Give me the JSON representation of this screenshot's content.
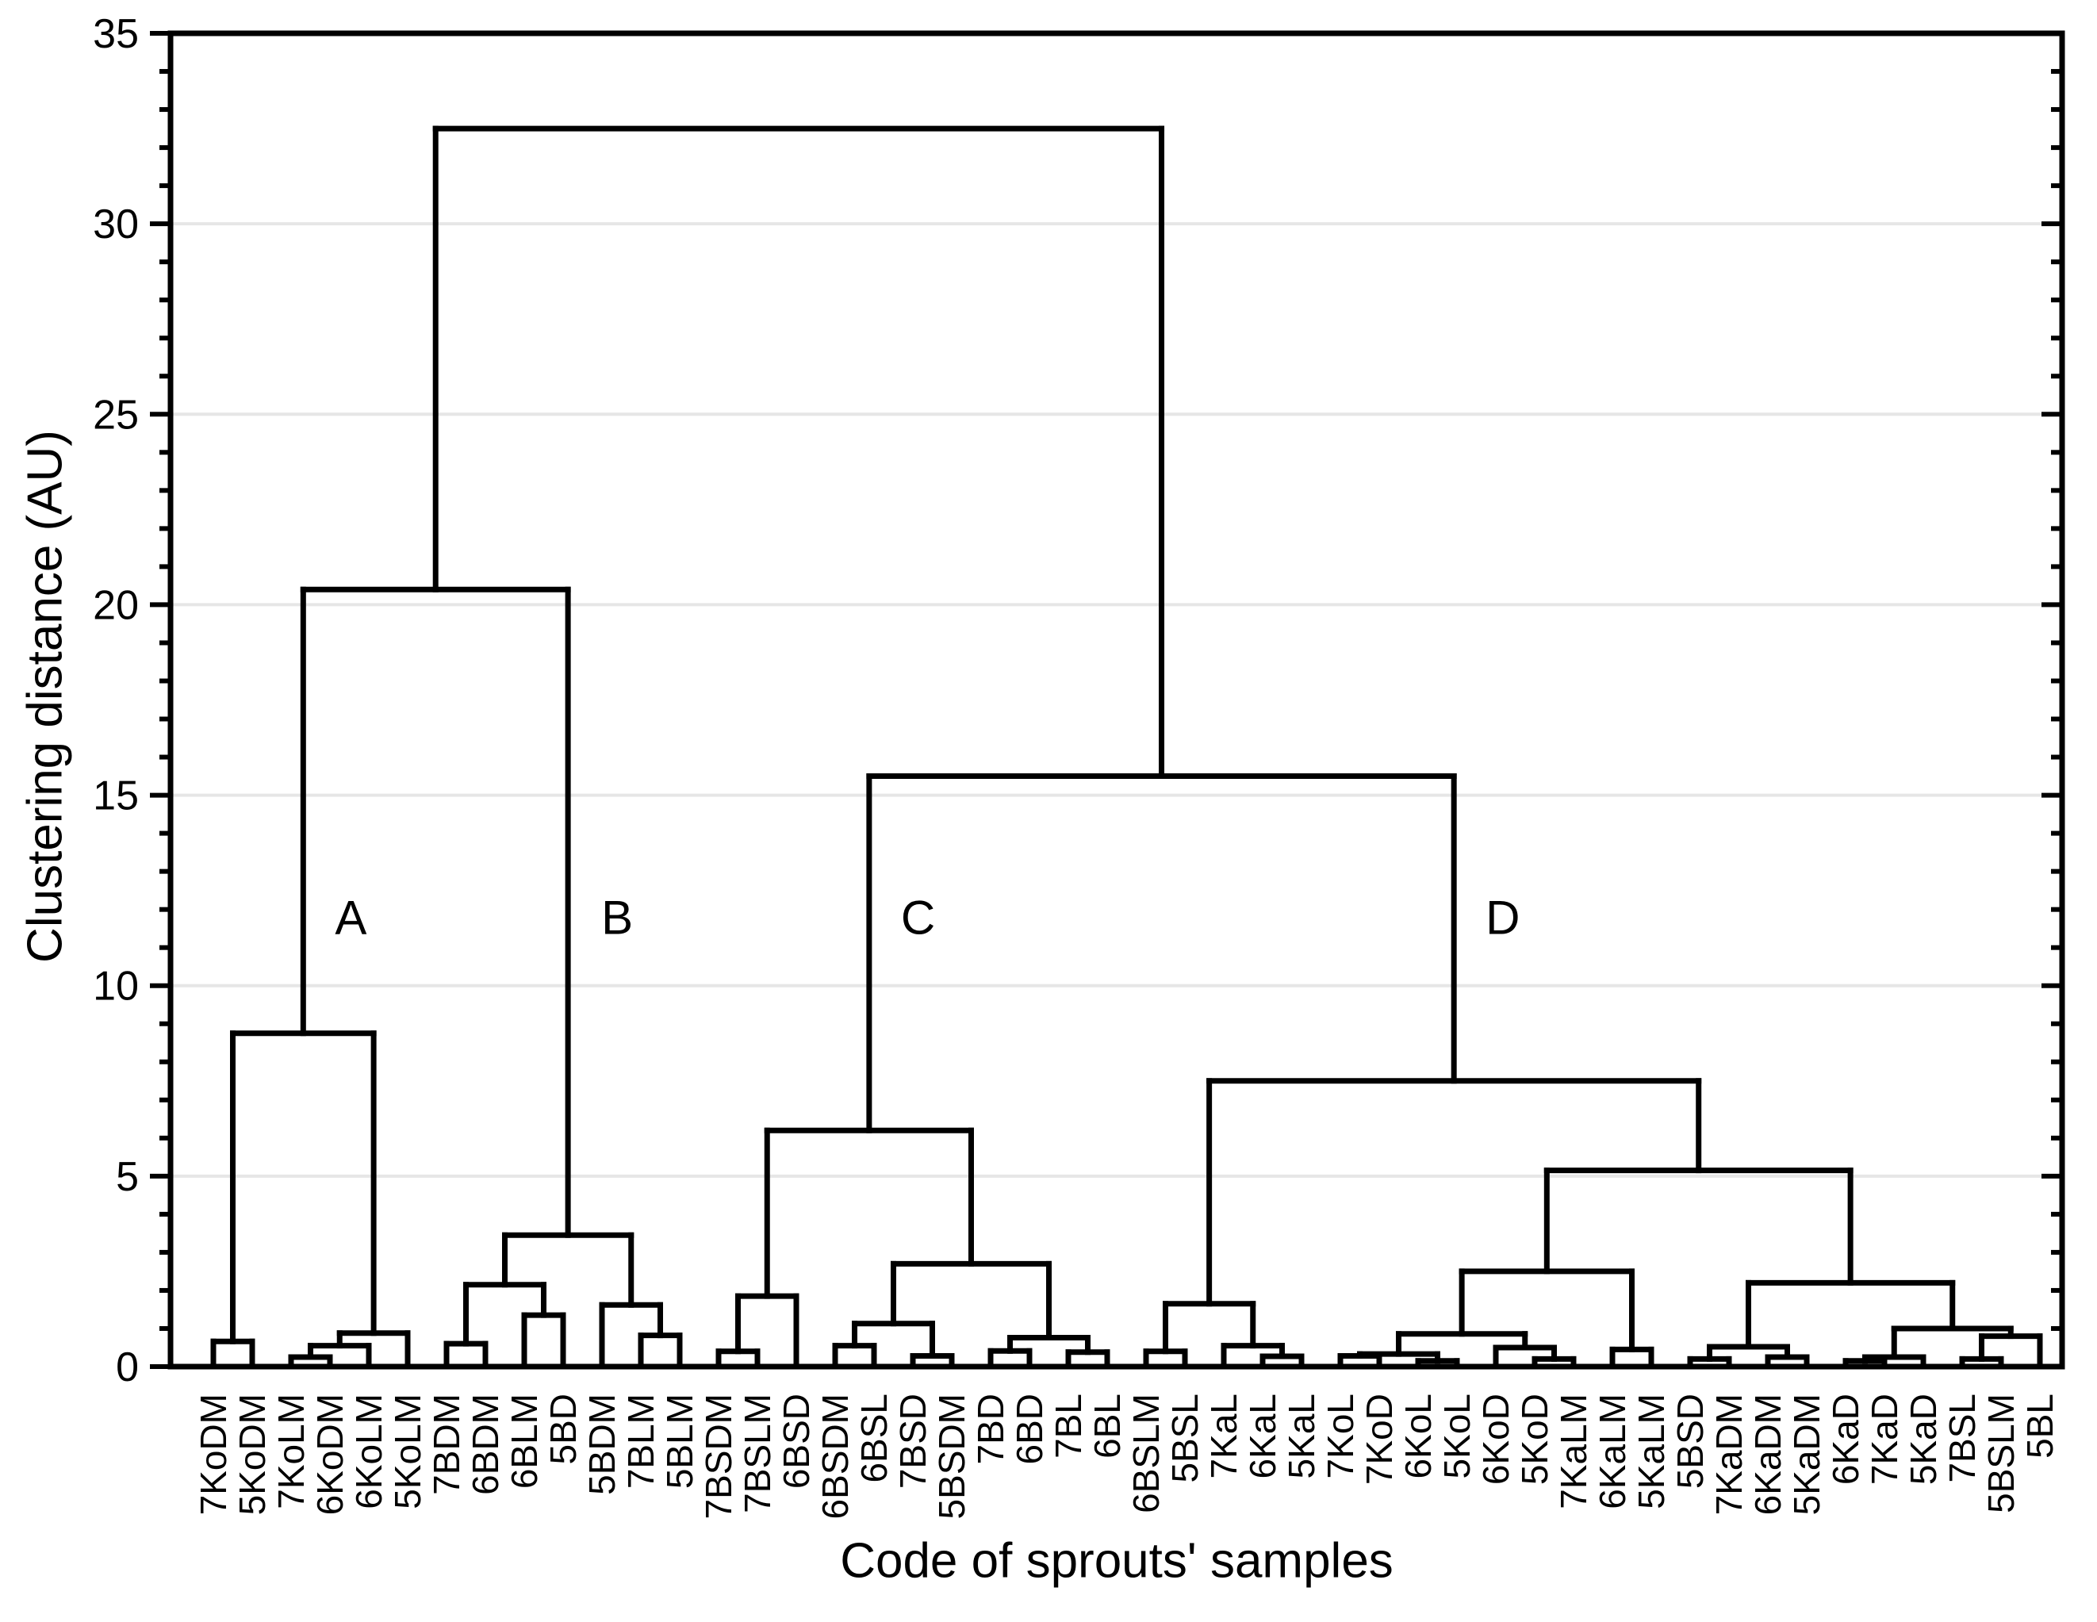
{
  "figure": {
    "background": "#ffffff",
    "x_axis_title": "Code of sprouts' samples",
    "y_axis_title": "Clustering distance (AU)"
  },
  "colors": {
    "line": "#000000",
    "gridline": "#e6e6e6",
    "text": "#000000"
  },
  "chart_data": {
    "type": "dendrogram",
    "orientation": "vertical",
    "xlabel": "Code of sprouts' samples",
    "ylabel": "Clustering distance (AU)",
    "ylim": [
      0,
      35
    ],
    "y_major_ticks": [
      0,
      5,
      10,
      15,
      20,
      25,
      30,
      35
    ],
    "y_minor_step": 1,
    "grid": "horizontal-major",
    "leaves": [
      "7KoDM",
      "5KoDM",
      "7KoLM",
      "6KoDM",
      "6KoLM",
      "5KoLM",
      "7BDM",
      "6BDM",
      "6BLM",
      "5BD",
      "5BDM",
      "7BLM",
      "5BLM",
      "7BSDM",
      "7BSLM",
      "6BSD",
      "6BSDM",
      "6BSL",
      "7BSD",
      "5BSDM",
      "7BD",
      "6BD",
      "7BL",
      "6BL",
      "6BSLM",
      "5BSL",
      "7KaL",
      "6KaL",
      "5KaL",
      "7KoL",
      "7KoD",
      "6KoL",
      "5KoL",
      "6KoD",
      "5KoD",
      "7KaLM",
      "6KaLM",
      "5KaLM",
      "5BSD",
      "7KaDM",
      "6KaDM",
      "5KaDM",
      "6KaD",
      "7KaD",
      "5KaD",
      "7BSL",
      "5BSLM",
      "5BL"
    ],
    "merges": [
      {
        "id": "a1",
        "a": "7KoDM",
        "b": "5KoDM",
        "h": 0.66
      },
      {
        "id": "a2",
        "a": "7KoLM",
        "b": "6KoDM",
        "h": 0.25
      },
      {
        "id": "a3",
        "a": "a2",
        "b": "6KoLM",
        "h": 0.55
      },
      {
        "id": "a4",
        "a": "a3",
        "b": "5KoLM",
        "h": 0.88
      },
      {
        "id": "A",
        "a": "a1",
        "b": "a4",
        "h": 8.75
      },
      {
        "id": "b1",
        "a": "7BDM",
        "b": "6BDM",
        "h": 0.6
      },
      {
        "id": "b2",
        "a": "6BLM",
        "b": "5BD",
        "h": 1.35
      },
      {
        "id": "b3",
        "a": "b1",
        "b": "b2",
        "h": 2.15
      },
      {
        "id": "b4",
        "a": "7BLM",
        "b": "5BLM",
        "h": 0.82
      },
      {
        "id": "b5",
        "a": "5BDM",
        "b": "b4",
        "h": 1.62
      },
      {
        "id": "B",
        "a": "b3",
        "b": "b5",
        "h": 3.45
      },
      {
        "id": "AB",
        "a": "A",
        "b": "B",
        "h": 20.4
      },
      {
        "id": "c1",
        "a": "7BSDM",
        "b": "7BSLM",
        "h": 0.4
      },
      {
        "id": "c2",
        "a": "c1",
        "b": "6BSD",
        "h": 1.85
      },
      {
        "id": "c3",
        "a": "6BSDM",
        "b": "6BSL",
        "h": 0.55
      },
      {
        "id": "c4",
        "a": "7BSD",
        "b": "5BSDM",
        "h": 0.28
      },
      {
        "id": "c5",
        "a": "c3",
        "b": "c4",
        "h": 1.13
      },
      {
        "id": "c6",
        "a": "7BD",
        "b": "6BD",
        "h": 0.41
      },
      {
        "id": "c7",
        "a": "7BL",
        "b": "6BL",
        "h": 0.38
      },
      {
        "id": "c8",
        "a": "c6",
        "b": "c7",
        "h": 0.76
      },
      {
        "id": "c9",
        "a": "c5",
        "b": "c8",
        "h": 2.7
      },
      {
        "id": "C",
        "a": "c2",
        "b": "c9",
        "h": 6.2
      },
      {
        "id": "d1",
        "a": "6BSLM",
        "b": "5BSL",
        "h": 0.4
      },
      {
        "id": "d2",
        "a": "6KaL",
        "b": "5KaL",
        "h": 0.27
      },
      {
        "id": "d3",
        "a": "7KaL",
        "b": "d2",
        "h": 0.55
      },
      {
        "id": "d4",
        "a": "d1",
        "b": "d3",
        "h": 1.65
      },
      {
        "id": "k1",
        "a": "7KoL",
        "b": "7KoD",
        "h": 0.28
      },
      {
        "id": "k2",
        "a": "6KoL",
        "b": "5KoL",
        "h": 0.15
      },
      {
        "id": "k3",
        "a": "k1",
        "b": "k2",
        "h": 0.33
      },
      {
        "id": "k4",
        "a": "5KoD",
        "b": "7KaLM",
        "h": 0.2
      },
      {
        "id": "k5",
        "a": "6KoD",
        "b": "k4",
        "h": 0.5
      },
      {
        "id": "k6",
        "a": "k3",
        "b": "k5",
        "h": 0.86
      },
      {
        "id": "k7",
        "a": "6KaLM",
        "b": "5KaLM",
        "h": 0.45
      },
      {
        "id": "k8",
        "a": "k6",
        "b": "k7",
        "h": 2.5
      },
      {
        "id": "r1",
        "a": "5BSD",
        "b": "7KaDM",
        "h": 0.2
      },
      {
        "id": "r2",
        "a": "6KaDM",
        "b": "5KaDM",
        "h": 0.25
      },
      {
        "id": "r3",
        "a": "r1",
        "b": "r2",
        "h": 0.52
      },
      {
        "id": "r4",
        "a": "6KaD",
        "b": "7KaD",
        "h": 0.15
      },
      {
        "id": "r5",
        "a": "r4",
        "b": "5KaD",
        "h": 0.25
      },
      {
        "id": "r6",
        "a": "7BSL",
        "b": "5BSLM",
        "h": 0.2
      },
      {
        "id": "r7",
        "a": "r6",
        "b": "5BL",
        "h": 0.8
      },
      {
        "id": "r8",
        "a": "r5",
        "b": "r7",
        "h": 1.0
      },
      {
        "id": "r9",
        "a": "r3",
        "b": "r8",
        "h": 2.2
      },
      {
        "id": "DR",
        "a": "k8",
        "b": "r9",
        "h": 5.15
      },
      {
        "id": "D",
        "a": "d4",
        "b": "DR",
        "h": 7.5
      },
      {
        "id": "CD",
        "a": "C",
        "b": "D",
        "h": 15.5
      },
      {
        "id": "root",
        "a": "AB",
        "b": "CD",
        "h": 32.5
      }
    ],
    "cluster_labels": [
      {
        "text": "A",
        "merge": "A",
        "dx": 40,
        "au": 11.8
      },
      {
        "text": "B",
        "merge": "B",
        "dx": 42,
        "au": 11.8
      },
      {
        "text": "C",
        "merge": "C",
        "dx": 40,
        "au": 11.8
      },
      {
        "text": "D",
        "merge": "D",
        "dx": 40,
        "au": 11.8
      }
    ]
  }
}
